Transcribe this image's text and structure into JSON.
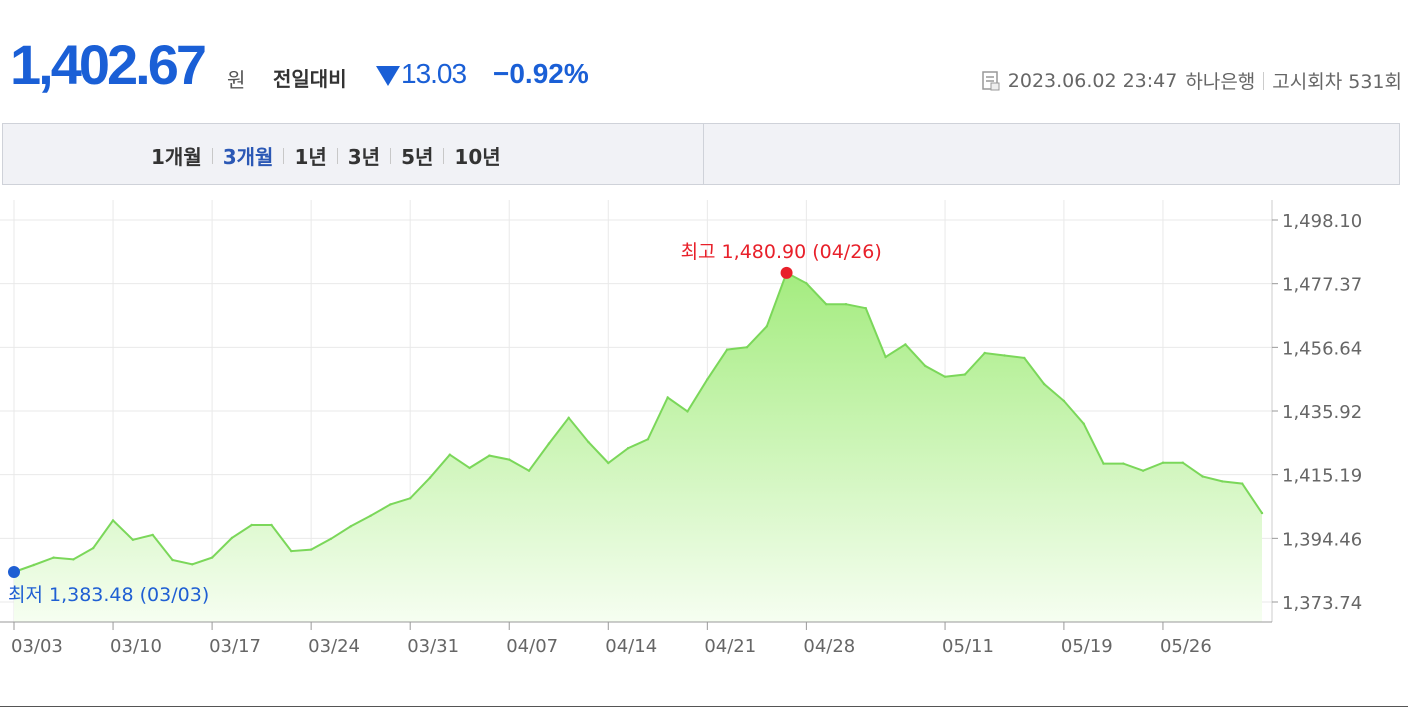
{
  "header": {
    "price": "1,402.67",
    "unit": "원",
    "change_label": "전일대비",
    "change_value": "13.03",
    "change_percent": "−0.92%",
    "direction_color": "#1a5fd6",
    "datetime": "2023.06.02 23:47",
    "bank": "하나은행",
    "notice": "고시회차 531회"
  },
  "tabs": [
    "1개월",
    "3개월",
    "1년",
    "3년",
    "5년",
    "10년"
  ],
  "active_tab": 1,
  "chart_data": {
    "type": "area",
    "title": "",
    "xlabel": "",
    "ylabel": "",
    "ylim": [
      1373.74,
      1498.1
    ],
    "yticks": [
      1498.1,
      1477.37,
      1456.64,
      1435.92,
      1415.19,
      1394.46,
      1373.74
    ],
    "ytick_labels": [
      "1,498.10",
      "1,477.37",
      "1,456.64",
      "1,435.92",
      "1,415.19",
      "1,394.46",
      "1,373.74"
    ],
    "xtick_labels": [
      "03/03",
      "03/10",
      "03/17",
      "03/24",
      "03/31",
      "04/07",
      "04/14",
      "04/21",
      "04/28",
      "05/11",
      "05/19",
      "05/26"
    ],
    "xtick_index": [
      0,
      5,
      10,
      15,
      20,
      25,
      30,
      35,
      40,
      47,
      53,
      58
    ],
    "grid": true,
    "colors": {
      "line": "#7bd75a",
      "fill_top": "#a4ec7f",
      "fill_bottom": "#f6fef1",
      "max": "#e8202a",
      "min": "#1f5fd3"
    },
    "values": [
      1383.5,
      1385.8,
      1388.2,
      1387.6,
      1391.3,
      1400.3,
      1394.0,
      1395.6,
      1387.4,
      1386.0,
      1388.2,
      1394.6,
      1398.8,
      1398.8,
      1390.3,
      1390.8,
      1394.3,
      1398.4,
      1401.8,
      1405.5,
      1407.5,
      1414.2,
      1421.7,
      1417.4,
      1421.4,
      1420.1,
      1416.5,
      1425.3,
      1433.7,
      1425.8,
      1419.0,
      1423.8,
      1426.7,
      1440.3,
      1435.8,
      1446.2,
      1455.9,
      1456.7,
      1463.5,
      1480.9,
      1477.5,
      1470.7,
      1470.7,
      1469.4,
      1453.5,
      1457.6,
      1450.6,
      1447.1,
      1447.8,
      1454.8,
      1454.0,
      1453.2,
      1444.7,
      1439.2,
      1431.8,
      1418.8,
      1418.8,
      1416.5,
      1419.1,
      1419.1,
      1414.6,
      1413.0,
      1412.3,
      1402.67
    ],
    "annotations": [
      {
        "label": "최고 1,480.90 (04/26)",
        "point_index": 39,
        "kind": "max"
      },
      {
        "label": "최저 1,383.48 (03/03)",
        "point_index": 0,
        "kind": "min"
      }
    ]
  }
}
